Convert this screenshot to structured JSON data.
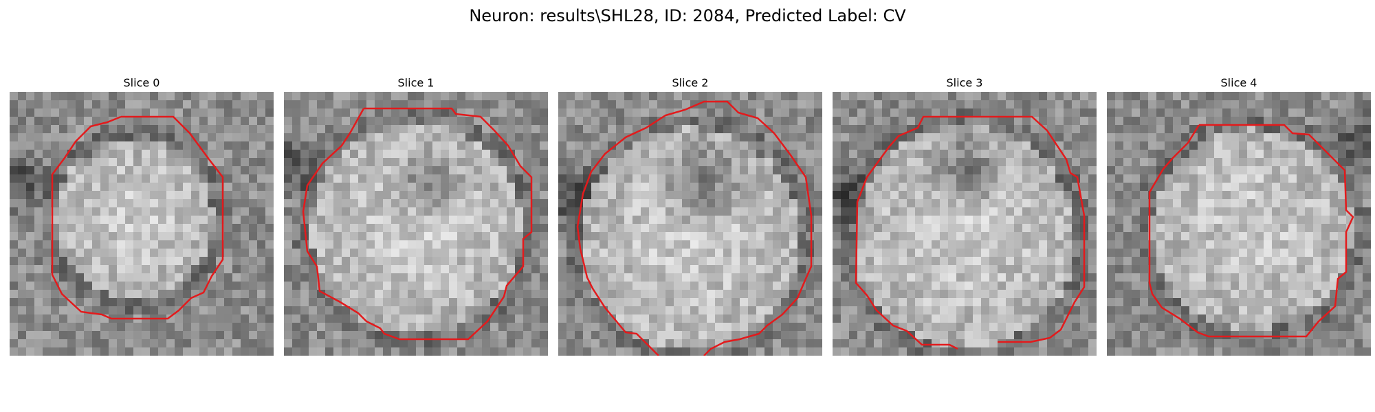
{
  "title": "Neuron: results\\SHL28, ID: 2084, Predicted Label: CV",
  "colors": {
    "contour": "#e31a1c",
    "background": "#ffffff"
  },
  "panels": [
    {
      "title": "Slice 0"
    },
    {
      "title": "Slice 1"
    },
    {
      "title": "Slice 2"
    },
    {
      "title": "Slice 3"
    },
    {
      "title": "Slice 4"
    }
  ]
}
